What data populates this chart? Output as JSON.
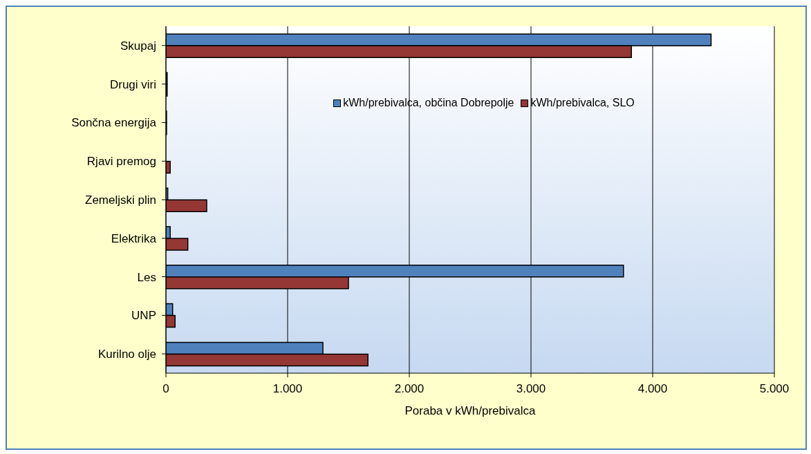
{
  "chart_data": {
    "type": "bar",
    "orientation": "horizontal",
    "xlabel": "Poraba v kWh/prebivalca",
    "categories": [
      "Skupaj",
      "Drugi viri",
      "Sončna energija",
      "Rjavi premog",
      "Zemeljski plin",
      "Elektrika",
      "Les",
      "UNP",
      "Kurilno olje"
    ],
    "series": [
      {
        "name": "kWh/prebivalca, občina Dobrepolje",
        "color": "#4f81bd",
        "values": [
          4480,
          10,
          5,
          0,
          15,
          35,
          3760,
          55,
          1290
        ]
      },
      {
        "name": "kWh/prebivalca, SLO",
        "color": "#953735",
        "values": [
          3825,
          10,
          5,
          35,
          335,
          180,
          1500,
          75,
          1660
        ]
      }
    ],
    "xlim": [
      0,
      5000
    ],
    "xticks": [
      {
        "value": 0,
        "label": "0"
      },
      {
        "value": 1000,
        "label": "1.000"
      },
      {
        "value": 2000,
        "label": "2.000"
      },
      {
        "value": 3000,
        "label": "3.000"
      },
      {
        "value": 4000,
        "label": "4.000"
      },
      {
        "value": 5000,
        "label": "5.000"
      }
    ],
    "grid": "x",
    "legend": "top"
  }
}
